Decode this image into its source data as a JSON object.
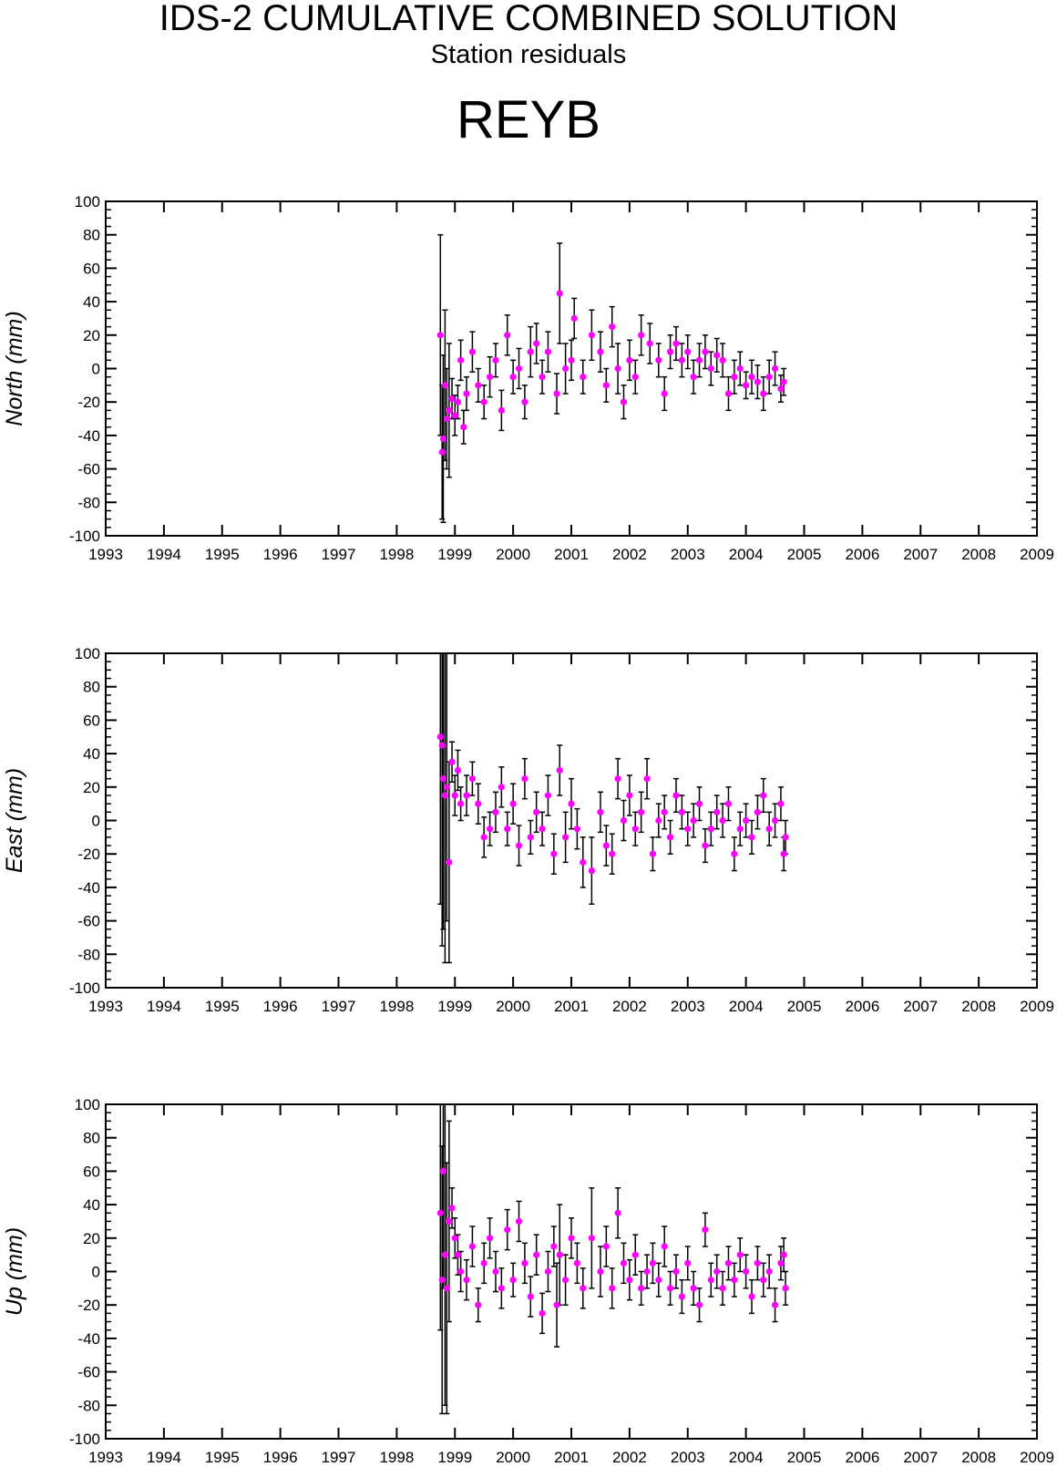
{
  "header": {
    "title": "IDS-2 CUMULATIVE COMBINED SOLUTION",
    "subtitle": "Station residuals",
    "station": "REYB"
  },
  "colors": {
    "point": "#ff00ff",
    "errorbar": "#000000",
    "axis": "#000000"
  },
  "chart_data": [
    {
      "type": "scatter",
      "name": "north",
      "ylabel": "North (mm)",
      "xlim": [
        1993,
        2009
      ],
      "ylim": [
        -100,
        100
      ],
      "x_ticks": [
        "1993",
        "1994",
        "1995",
        "1996",
        "1997",
        "1998",
        "1999",
        "2000",
        "2001",
        "2002",
        "2003",
        "2004",
        "2005",
        "2006",
        "2007",
        "2008",
        "2009"
      ],
      "y_ticks": [
        "100",
        "80",
        "60",
        "40",
        "20",
        "0",
        "-20",
        "-40",
        "-60",
        "-80",
        "-100"
      ],
      "error_bars": true,
      "points": [
        [
          1998.75,
          20,
          60
        ],
        [
          1998.78,
          -50,
          40
        ],
        [
          1998.8,
          -42,
          50
        ],
        [
          1998.83,
          -10,
          45
        ],
        [
          1998.86,
          -30,
          30
        ],
        [
          1998.9,
          -25,
          40
        ],
        [
          1998.95,
          -18,
          12
        ],
        [
          1999.0,
          -28,
          12
        ],
        [
          1999.05,
          -20,
          10
        ],
        [
          1999.1,
          5,
          12
        ],
        [
          1999.15,
          -35,
          10
        ],
        [
          1999.2,
          -15,
          10
        ],
        [
          1999.3,
          10,
          12
        ],
        [
          1999.4,
          -10,
          10
        ],
        [
          1999.5,
          -20,
          10
        ],
        [
          1999.6,
          -5,
          12
        ],
        [
          1999.7,
          5,
          10
        ],
        [
          1999.8,
          -25,
          12
        ],
        [
          1999.9,
          20,
          12
        ],
        [
          2000.0,
          -5,
          10
        ],
        [
          2000.1,
          0,
          12
        ],
        [
          2000.2,
          -20,
          10
        ],
        [
          2000.3,
          10,
          15
        ],
        [
          2000.4,
          15,
          12
        ],
        [
          2000.5,
          -5,
          10
        ],
        [
          2000.6,
          10,
          12
        ],
        [
          2000.75,
          -15,
          12
        ],
        [
          2000.8,
          45,
          30
        ],
        [
          2000.9,
          0,
          15
        ],
        [
          2001.0,
          5,
          12
        ],
        [
          2001.05,
          30,
          12
        ],
        [
          2001.2,
          -5,
          10
        ],
        [
          2001.35,
          20,
          15
        ],
        [
          2001.5,
          10,
          12
        ],
        [
          2001.6,
          -10,
          10
        ],
        [
          2001.7,
          25,
          12
        ],
        [
          2001.8,
          0,
          15
        ],
        [
          2001.9,
          -20,
          10
        ],
        [
          2002.0,
          5,
          12
        ],
        [
          2002.1,
          -5,
          10
        ],
        [
          2002.2,
          20,
          12
        ],
        [
          2002.35,
          15,
          12
        ],
        [
          2002.5,
          5,
          10
        ],
        [
          2002.6,
          -15,
          10
        ],
        [
          2002.7,
          10,
          10
        ],
        [
          2002.8,
          15,
          10
        ],
        [
          2002.9,
          5,
          10
        ],
        [
          2003.0,
          10,
          10
        ],
        [
          2003.1,
          -5,
          10
        ],
        [
          2003.2,
          5,
          10
        ],
        [
          2003.3,
          10,
          10
        ],
        [
          2003.4,
          0,
          10
        ],
        [
          2003.5,
          8,
          10
        ],
        [
          2003.6,
          5,
          10
        ],
        [
          2003.7,
          -15,
          10
        ],
        [
          2003.8,
          -5,
          10
        ],
        [
          2003.9,
          0,
          10
        ],
        [
          2004.0,
          -10,
          8
        ],
        [
          2004.1,
          -5,
          10
        ],
        [
          2004.2,
          -8,
          10
        ],
        [
          2004.3,
          -15,
          10
        ],
        [
          2004.4,
          -5,
          10
        ],
        [
          2004.5,
          0,
          10
        ],
        [
          2004.6,
          -12,
          8
        ],
        [
          2004.65,
          -8,
          8
        ]
      ]
    },
    {
      "type": "scatter",
      "name": "east",
      "ylabel": "East (mm)",
      "xlim": [
        1993,
        2009
      ],
      "ylim": [
        -100,
        100
      ],
      "x_ticks": [
        "1993",
        "1994",
        "1995",
        "1996",
        "1997",
        "1998",
        "1999",
        "2000",
        "2001",
        "2002",
        "2003",
        "2004",
        "2005",
        "2006",
        "2007",
        "2008",
        "2009"
      ],
      "y_ticks": [
        "100",
        "80",
        "60",
        "40",
        "20",
        "0",
        "-20",
        "-40",
        "-60",
        "-80",
        "-100"
      ],
      "error_bars": true,
      "points": [
        [
          1998.75,
          50,
          100
        ],
        [
          1998.78,
          45,
          120
        ],
        [
          1998.8,
          25,
          90
        ],
        [
          1998.83,
          15,
          100
        ],
        [
          1998.86,
          20,
          80
        ],
        [
          1998.9,
          -25,
          60
        ],
        [
          1998.95,
          35,
          12
        ],
        [
          1999.0,
          15,
          12
        ],
        [
          1999.05,
          30,
          12
        ],
        [
          1999.1,
          10,
          10
        ],
        [
          1999.2,
          15,
          12
        ],
        [
          1999.3,
          25,
          10
        ],
        [
          1999.4,
          10,
          12
        ],
        [
          1999.5,
          -10,
          12
        ],
        [
          1999.6,
          -5,
          10
        ],
        [
          1999.7,
          5,
          12
        ],
        [
          1999.8,
          20,
          12
        ],
        [
          1999.9,
          -5,
          10
        ],
        [
          2000.0,
          10,
          12
        ],
        [
          2000.1,
          -15,
          12
        ],
        [
          2000.2,
          25,
          12
        ],
        [
          2000.3,
          -10,
          10
        ],
        [
          2000.4,
          5,
          12
        ],
        [
          2000.5,
          -5,
          10
        ],
        [
          2000.6,
          15,
          12
        ],
        [
          2000.7,
          -20,
          12
        ],
        [
          2000.8,
          30,
          15
        ],
        [
          2000.9,
          -10,
          15
        ],
        [
          2001.0,
          10,
          15
        ],
        [
          2001.1,
          -5,
          12
        ],
        [
          2001.2,
          -25,
          15
        ],
        [
          2001.35,
          -30,
          20
        ],
        [
          2001.5,
          5,
          12
        ],
        [
          2001.6,
          -15,
          12
        ],
        [
          2001.7,
          -20,
          12
        ],
        [
          2001.8,
          25,
          12
        ],
        [
          2001.9,
          0,
          12
        ],
        [
          2002.0,
          15,
          12
        ],
        [
          2002.1,
          -5,
          10
        ],
        [
          2002.2,
          5,
          12
        ],
        [
          2002.3,
          25,
          12
        ],
        [
          2002.4,
          -20,
          10
        ],
        [
          2002.5,
          0,
          10
        ],
        [
          2002.6,
          5,
          10
        ],
        [
          2002.7,
          -10,
          10
        ],
        [
          2002.8,
          15,
          10
        ],
        [
          2002.9,
          5,
          10
        ],
        [
          2003.0,
          -5,
          10
        ],
        [
          2003.1,
          0,
          10
        ],
        [
          2003.2,
          10,
          10
        ],
        [
          2003.3,
          -15,
          10
        ],
        [
          2003.4,
          -5,
          10
        ],
        [
          2003.5,
          5,
          10
        ],
        [
          2003.6,
          0,
          10
        ],
        [
          2003.7,
          10,
          10
        ],
        [
          2003.8,
          -20,
          10
        ],
        [
          2003.9,
          -5,
          10
        ],
        [
          2004.0,
          0,
          10
        ],
        [
          2004.1,
          -10,
          10
        ],
        [
          2004.2,
          5,
          10
        ],
        [
          2004.3,
          15,
          10
        ],
        [
          2004.4,
          -5,
          10
        ],
        [
          2004.5,
          0,
          10
        ],
        [
          2004.6,
          10,
          10
        ],
        [
          2004.65,
          -20,
          10
        ],
        [
          2004.68,
          -10,
          10
        ]
      ]
    },
    {
      "type": "scatter",
      "name": "up",
      "ylabel": "Up (mm)",
      "xlim": [
        1993,
        2009
      ],
      "ylim": [
        -100,
        100
      ],
      "x_ticks": [
        "1993",
        "1994",
        "1995",
        "1996",
        "1997",
        "1998",
        "1999",
        "2000",
        "2001",
        "2002",
        "2003",
        "2004",
        "2005",
        "2006",
        "2007",
        "2008",
        "2009"
      ],
      "y_ticks": [
        "100",
        "80",
        "60",
        "40",
        "20",
        "0",
        "-20",
        "-40",
        "-60",
        "-80",
        "-100"
      ],
      "error_bars": true,
      "points": [
        [
          1998.75,
          35,
          70
        ],
        [
          1998.78,
          -5,
          80
        ],
        [
          1998.8,
          60,
          70
        ],
        [
          1998.83,
          10,
          90
        ],
        [
          1998.86,
          -10,
          75
        ],
        [
          1998.9,
          30,
          60
        ],
        [
          1998.95,
          38,
          12
        ],
        [
          1999.0,
          20,
          12
        ],
        [
          1999.05,
          10,
          12
        ],
        [
          1999.1,
          0,
          12
        ],
        [
          1999.2,
          -5,
          12
        ],
        [
          1999.3,
          15,
          12
        ],
        [
          1999.4,
          -20,
          10
        ],
        [
          1999.5,
          5,
          12
        ],
        [
          1999.6,
          20,
          12
        ],
        [
          1999.7,
          0,
          12
        ],
        [
          1999.8,
          -10,
          12
        ],
        [
          1999.9,
          25,
          12
        ],
        [
          2000.0,
          -5,
          10
        ],
        [
          2000.1,
          30,
          12
        ],
        [
          2000.2,
          5,
          12
        ],
        [
          2000.3,
          -15,
          12
        ],
        [
          2000.4,
          10,
          12
        ],
        [
          2000.5,
          -25,
          12
        ],
        [
          2000.6,
          0,
          12
        ],
        [
          2000.7,
          15,
          12
        ],
        [
          2000.75,
          -20,
          25
        ],
        [
          2000.8,
          10,
          30
        ],
        [
          2000.9,
          -5,
          15
        ],
        [
          2001.0,
          20,
          12
        ],
        [
          2001.1,
          5,
          12
        ],
        [
          2001.2,
          -10,
          12
        ],
        [
          2001.35,
          20,
          30
        ],
        [
          2001.5,
          0,
          15
        ],
        [
          2001.6,
          15,
          12
        ],
        [
          2001.7,
          -10,
          12
        ],
        [
          2001.8,
          35,
          15
        ],
        [
          2001.9,
          5,
          12
        ],
        [
          2002.0,
          -5,
          12
        ],
        [
          2002.1,
          10,
          12
        ],
        [
          2002.2,
          -10,
          10
        ],
        [
          2002.3,
          0,
          10
        ],
        [
          2002.4,
          5,
          12
        ],
        [
          2002.5,
          -5,
          10
        ],
        [
          2002.6,
          15,
          12
        ],
        [
          2002.7,
          -10,
          10
        ],
        [
          2002.8,
          0,
          10
        ],
        [
          2002.9,
          -15,
          10
        ],
        [
          2003.0,
          5,
          10
        ],
        [
          2003.1,
          -10,
          10
        ],
        [
          2003.2,
          -20,
          10
        ],
        [
          2003.3,
          25,
          10
        ],
        [
          2003.4,
          -5,
          10
        ],
        [
          2003.5,
          0,
          10
        ],
        [
          2003.6,
          -10,
          10
        ],
        [
          2003.7,
          5,
          10
        ],
        [
          2003.8,
          -5,
          10
        ],
        [
          2003.9,
          10,
          10
        ],
        [
          2004.0,
          0,
          10
        ],
        [
          2004.1,
          -15,
          10
        ],
        [
          2004.2,
          5,
          10
        ],
        [
          2004.3,
          -5,
          10
        ],
        [
          2004.4,
          0,
          10
        ],
        [
          2004.5,
          -20,
          10
        ],
        [
          2004.6,
          5,
          10
        ],
        [
          2004.65,
          10,
          10
        ],
        [
          2004.68,
          -10,
          10
        ]
      ]
    }
  ]
}
